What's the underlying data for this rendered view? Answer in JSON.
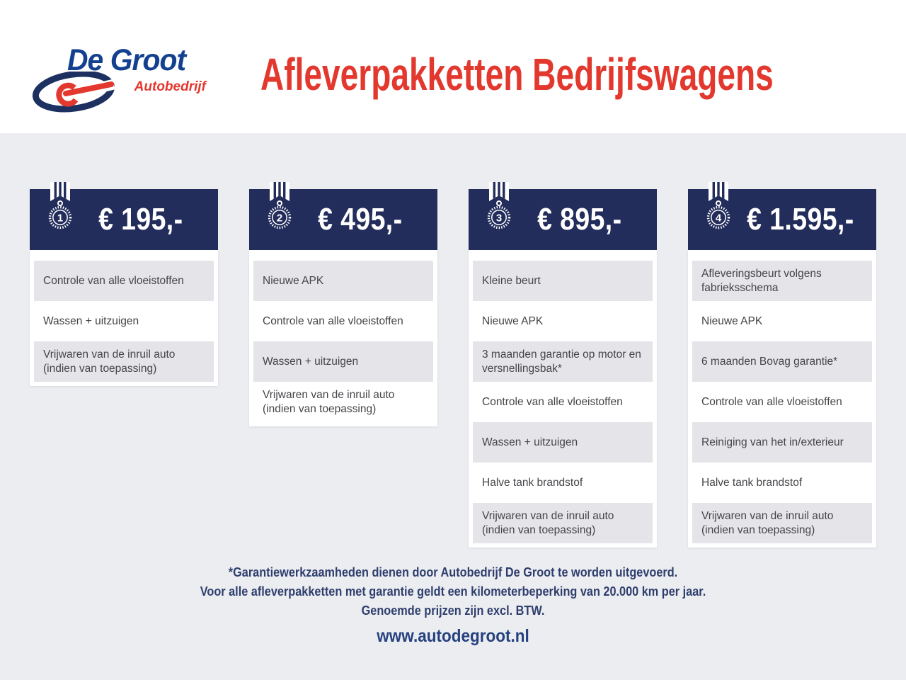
{
  "colors": {
    "page_background": "#ECEDF1",
    "band_background": "#FFFFFF",
    "header_navy": "#232D5B",
    "row_gray": "#E4E4E9",
    "title_red": "#E2382E",
    "logo_blue": "#14418F",
    "footer_navy": "#2F3F6D"
  },
  "logo": {
    "name": "De Groot",
    "subtitle": "Autobedrijf"
  },
  "title": "Afleverpakketten Bedrijfswagens",
  "packages": [
    {
      "number": "1",
      "price": "€ 195,-",
      "items": [
        "Controle van alle vloeistoffen",
        "Wassen + uitzuigen",
        "Vrijwaren van de inruil auto (indien van toepassing)"
      ]
    },
    {
      "number": "2",
      "price": "€ 495,-",
      "items": [
        "Nieuwe APK",
        "Controle van alle vloeistoffen",
        "Wassen + uitzuigen",
        "Vrijwaren van de inruil auto (indien van toepassing)"
      ]
    },
    {
      "number": "3",
      "price": "€ 895,-",
      "items": [
        "Kleine beurt",
        "Nieuwe APK",
        "3 maanden garantie op motor en versnellingsbak*",
        "Controle van alle vloeistoffen",
        "Wassen + uitzuigen",
        "Halve tank brandstof",
        "Vrijwaren van de inruil auto (indien van toepassing)"
      ]
    },
    {
      "number": "4",
      "price": "€ 1.595,-",
      "items": [
        "Afleveringsbeurt volgens fabrieksschema",
        "Nieuwe APK",
        "6 maanden Bovag garantie*",
        "Controle van alle vloeistoffen",
        "Reiniging van het in/exterieur",
        "Halve tank brandstof",
        "Vrijwaren van de inruil auto (indien van toepassing)"
      ]
    }
  ],
  "footer": {
    "notes": [
      "*Garantiewerkzaamheden dienen door Autobedrijf De Groot te worden uitgevoerd.",
      "Voor alle afleverpakketten met garantie geldt een kilometerbeperking van 20.000 km per jaar.",
      "Genoemde prijzen zijn excl. BTW."
    ],
    "website": "www.autodegroot.nl"
  }
}
